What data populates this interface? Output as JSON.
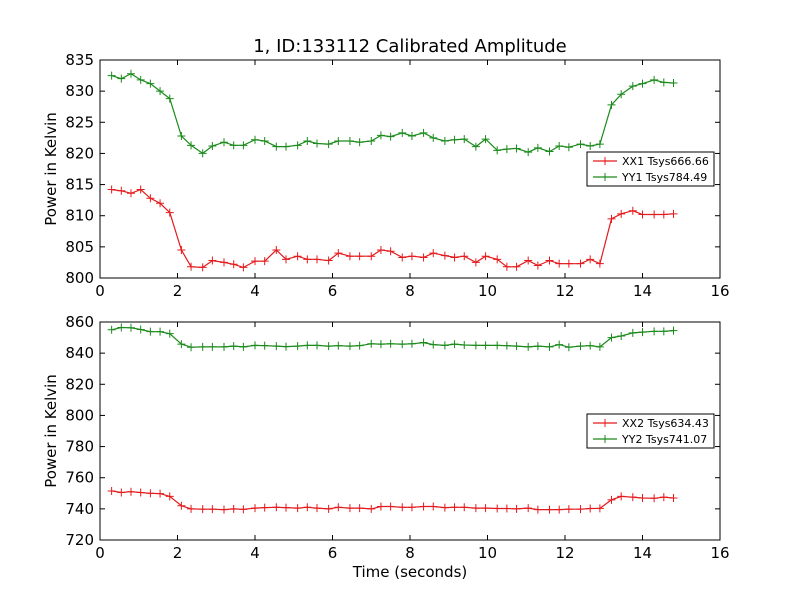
{
  "figure_title": "1, ID:133112 Calibrated Amplitude",
  "colors": {
    "red": "#e41a1c",
    "green": "#1a8a1a"
  },
  "chart_data": [
    {
      "type": "line",
      "title": "1, ID:133112 Calibrated Amplitude",
      "xlabel": "",
      "ylabel": "Power in Kelvin",
      "xlim": [
        0,
        16
      ],
      "ylim": [
        800,
        835
      ],
      "xticks": [
        0,
        2,
        4,
        6,
        8,
        10,
        12,
        14,
        16
      ],
      "yticks": [
        800,
        805,
        810,
        815,
        820,
        825,
        830,
        835
      ],
      "grid": false,
      "legend_position": "right",
      "x": [
        0.3,
        0.55,
        0.8,
        1.05,
        1.3,
        1.55,
        1.8,
        2.1,
        2.35,
        2.65,
        2.9,
        3.2,
        3.45,
        3.7,
        4.0,
        4.25,
        4.55,
        4.8,
        5.1,
        5.35,
        5.6,
        5.9,
        6.15,
        6.45,
        6.7,
        7.0,
        7.25,
        7.5,
        7.8,
        8.05,
        8.35,
        8.6,
        8.9,
        9.15,
        9.4,
        9.7,
        9.95,
        10.25,
        10.5,
        10.75,
        11.05,
        11.3,
        11.6,
        11.85,
        12.1,
        12.4,
        12.65,
        12.9,
        13.2,
        13.45,
        13.75,
        14.0,
        14.3,
        14.55,
        14.8
      ],
      "series": [
        {
          "name": "XX1 Tsys666.66",
          "color": "#e41a1c",
          "values": [
            814.2,
            814.0,
            813.6,
            814.2,
            812.8,
            812.0,
            810.5,
            804.5,
            801.8,
            801.7,
            802.8,
            802.5,
            802.2,
            801.7,
            802.7,
            802.7,
            804.5,
            803.0,
            803.5,
            803.0,
            803.0,
            802.8,
            804.0,
            803.5,
            803.5,
            803.5,
            804.5,
            804.3,
            803.3,
            803.5,
            803.3,
            804.0,
            803.6,
            803.3,
            803.5,
            802.5,
            803.5,
            803.0,
            801.8,
            801.8,
            802.8,
            802.0,
            802.8,
            802.3,
            802.3,
            802.3,
            803.0,
            802.3,
            809.5,
            810.3,
            810.8,
            810.2,
            810.2,
            810.2,
            810.3
          ]
        },
        {
          "name": "YY1 Tsys784.49",
          "color": "#1a8a1a",
          "values": [
            832.5,
            832.0,
            832.8,
            831.8,
            831.2,
            830.0,
            828.8,
            822.8,
            821.3,
            820.0,
            821.2,
            821.8,
            821.3,
            821.3,
            822.2,
            822.0,
            821.1,
            821.1,
            821.3,
            822.0,
            821.6,
            821.5,
            822.0,
            822.0,
            821.8,
            822.0,
            822.9,
            822.7,
            823.3,
            822.8,
            823.3,
            822.5,
            822.0,
            822.2,
            822.3,
            821.1,
            822.3,
            820.5,
            820.7,
            820.8,
            820.2,
            820.9,
            820.3,
            821.2,
            821.0,
            821.5,
            821.2,
            821.5,
            827.8,
            829.5,
            830.8,
            831.2,
            831.8,
            831.4,
            831.3
          ]
        }
      ]
    },
    {
      "type": "line",
      "title": "",
      "xlabel": "Time (seconds)",
      "ylabel": "Power in Kelvin",
      "xlim": [
        0,
        16
      ],
      "ylim": [
        720,
        860
      ],
      "xticks": [
        0,
        2,
        4,
        6,
        8,
        10,
        12,
        14,
        16
      ],
      "yticks": [
        720,
        740,
        760,
        780,
        800,
        820,
        840,
        860
      ],
      "grid": false,
      "legend_position": "right",
      "x": [
        0.3,
        0.55,
        0.8,
        1.05,
        1.3,
        1.55,
        1.8,
        2.1,
        2.35,
        2.65,
        2.9,
        3.2,
        3.45,
        3.7,
        4.0,
        4.25,
        4.55,
        4.8,
        5.1,
        5.35,
        5.6,
        5.9,
        6.15,
        6.45,
        6.7,
        7.0,
        7.25,
        7.5,
        7.8,
        8.05,
        8.35,
        8.6,
        8.9,
        9.15,
        9.4,
        9.7,
        9.95,
        10.25,
        10.5,
        10.75,
        11.05,
        11.3,
        11.6,
        11.85,
        12.1,
        12.4,
        12.65,
        12.9,
        13.2,
        13.45,
        13.75,
        14.0,
        14.3,
        14.55,
        14.8
      ],
      "series": [
        {
          "name": "XX2 Tsys634.43",
          "color": "#e41a1c",
          "values": [
            751.5,
            750.5,
            751.0,
            750.5,
            750.0,
            749.8,
            748.0,
            742.0,
            740.0,
            739.8,
            739.8,
            739.5,
            740.0,
            739.7,
            740.5,
            740.8,
            741.0,
            740.8,
            740.5,
            741.0,
            740.5,
            740.0,
            741.0,
            740.5,
            740.5,
            740.0,
            741.5,
            741.5,
            741.0,
            741.0,
            741.5,
            741.5,
            740.8,
            741.0,
            741.0,
            740.5,
            740.5,
            740.2,
            740.2,
            740.0,
            740.5,
            739.5,
            739.5,
            739.5,
            739.8,
            739.8,
            740.2,
            740.3,
            745.8,
            748.0,
            747.5,
            747.0,
            746.8,
            747.5,
            747.0
          ]
        },
        {
          "name": "YY2 Tsys741.07",
          "color": "#1a8a1a",
          "values": [
            855.0,
            856.5,
            856.3,
            855.2,
            853.8,
            853.8,
            852.5,
            845.8,
            843.8,
            844.0,
            844.0,
            844.0,
            844.5,
            844.0,
            845.0,
            844.8,
            844.5,
            844.2,
            844.5,
            845.0,
            845.0,
            844.5,
            844.8,
            844.5,
            844.8,
            846.0,
            845.8,
            846.0,
            845.8,
            846.0,
            846.8,
            845.5,
            845.0,
            845.8,
            845.2,
            845.0,
            845.0,
            845.0,
            844.8,
            844.5,
            844.0,
            844.5,
            844.0,
            845.5,
            843.8,
            844.5,
            844.8,
            844.0,
            850.0,
            851.0,
            853.0,
            853.5,
            854.0,
            854.0,
            854.5
          ]
        }
      ]
    }
  ]
}
